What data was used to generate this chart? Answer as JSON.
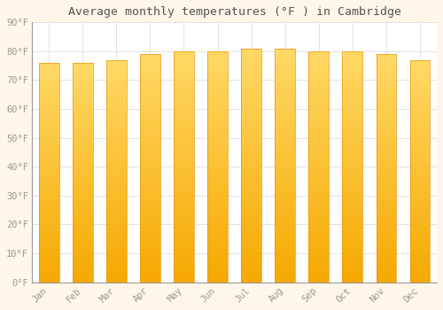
{
  "months": [
    "Jan",
    "Feb",
    "Mar",
    "Apr",
    "May",
    "Jun",
    "Jul",
    "Aug",
    "Sep",
    "Oct",
    "Nov",
    "Dec"
  ],
  "values": [
    76,
    76,
    77,
    79,
    80,
    80,
    81,
    81,
    80,
    80,
    79,
    77
  ],
  "bar_color_bottom": "#F5A800",
  "bar_color_top": "#FFD966",
  "title": "Average monthly temperatures (°F ) in Cambridge",
  "ylim": [
    0,
    90
  ],
  "yticks": [
    0,
    10,
    20,
    30,
    40,
    50,
    60,
    70,
    80,
    90
  ],
  "ytick_labels": [
    "0°F",
    "10°F",
    "20°F",
    "30°F",
    "40°F",
    "50°F",
    "60°F",
    "70°F",
    "80°F",
    "90°F"
  ],
  "plot_bg_color": "#FFFFFF",
  "fig_bg_color": "#FFF5E8",
  "grid_color": "#DDDDDD",
  "title_fontsize": 9.5,
  "tick_fontsize": 7.5,
  "font_family": "monospace",
  "bar_width": 0.6,
  "bar_edge_color": "#E8950A",
  "bar_edge_width": 0.5
}
